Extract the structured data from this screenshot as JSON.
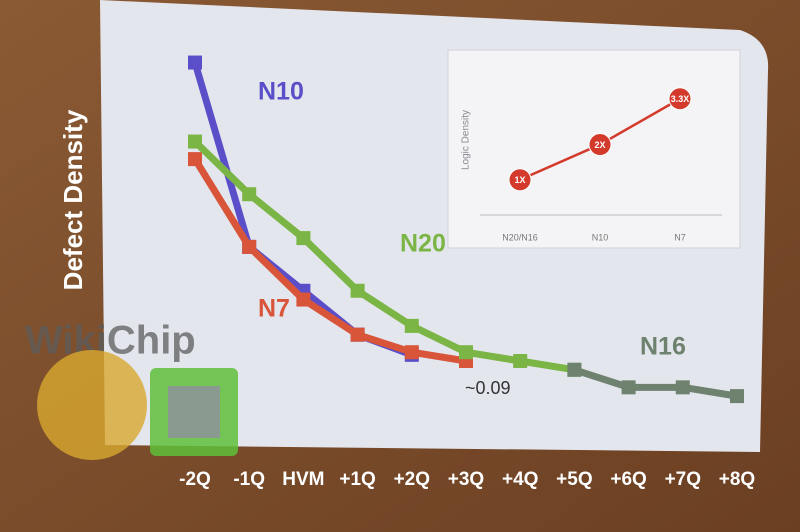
{
  "watermark": "WikiChip",
  "chart_data": [
    {
      "type": "line",
      "y_label": "Defect Density",
      "categories": [
        "-2Q",
        "-1Q",
        "HVM",
        "+1Q",
        "+2Q",
        "+3Q",
        "+4Q",
        "+5Q",
        "+6Q",
        "+7Q",
        "+8Q"
      ],
      "series": [
        {
          "name": "N10",
          "color": "#5b4fc9",
          "values": [
            0.43,
            0.22,
            0.17,
            0.12,
            0.097,
            null,
            null,
            null,
            null,
            null,
            null
          ]
        },
        {
          "name": "N7",
          "color": "#d8553a",
          "values": [
            0.32,
            0.22,
            0.16,
            0.12,
            0.1,
            0.09,
            null,
            null,
            null,
            null,
            null
          ]
        },
        {
          "name": "N20",
          "color": "#7ab545",
          "values": [
            0.34,
            0.28,
            0.23,
            0.17,
            0.13,
            0.1,
            0.09,
            0.08,
            null,
            null,
            null
          ]
        },
        {
          "name": "N16",
          "color": "#6f826f",
          "values": [
            null,
            null,
            null,
            null,
            null,
            null,
            null,
            0.08,
            0.06,
            0.06,
            0.05
          ]
        }
      ],
      "annotation": "~0.09",
      "ylim": [
        0,
        0.45
      ]
    },
    {
      "type": "line",
      "y_label": "Logic Density",
      "categories": [
        "N20/N16",
        "N10",
        "N7"
      ],
      "series": [
        {
          "color": "#d33a2c",
          "values": [
            1,
            2,
            3.3
          ],
          "value_labels": [
            "1X",
            "2X",
            "3.3X"
          ]
        }
      ],
      "ylim": [
        0,
        4.4
      ]
    }
  ]
}
